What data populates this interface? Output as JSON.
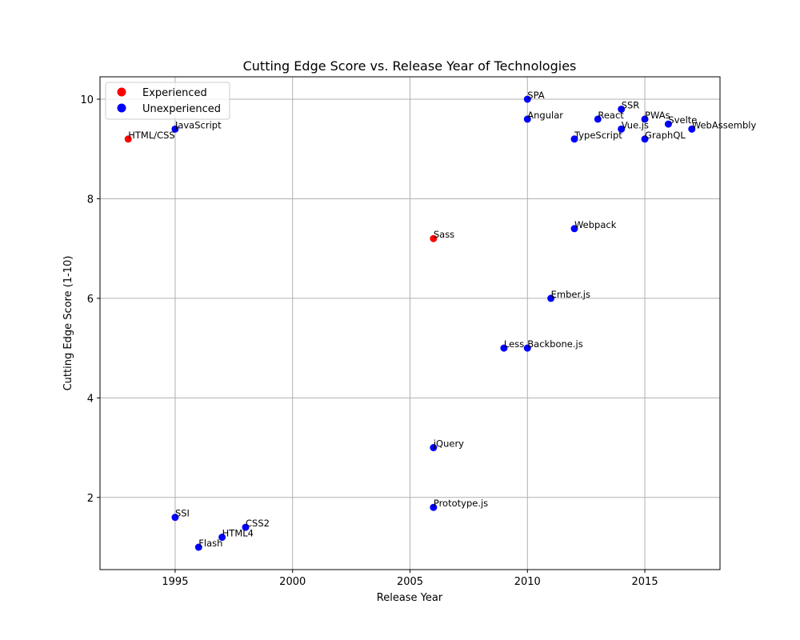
{
  "chart_data": {
    "type": "scatter",
    "title": "Cutting Edge Score vs. Release Year of Technologies",
    "xlabel": "Release Year",
    "ylabel": "Cutting Edge Score (1-10)",
    "xlim": [
      1991.8,
      2018.2
    ],
    "ylim": [
      0.55,
      10.45
    ],
    "xticks": [
      1995,
      2000,
      2005,
      2010,
      2015
    ],
    "yticks": [
      2,
      4,
      6,
      8,
      10
    ],
    "grid": true,
    "legend_position": "top-left",
    "legend": [
      {
        "label": "Experienced",
        "color": "#ff0000"
      },
      {
        "label": "Unexperienced",
        "color": "#0000ff"
      }
    ],
    "series": [
      {
        "name": "Experienced",
        "color": "#ff0000",
        "points": [
          {
            "label": "HTML/CSS",
            "x": 1993,
            "y": 9.2
          },
          {
            "label": "Sass",
            "x": 2006,
            "y": 7.2
          }
        ]
      },
      {
        "name": "Unexperienced",
        "color": "#0000ff",
        "points": [
          {
            "label": "JavaScript",
            "x": 1995,
            "y": 9.4
          },
          {
            "label": "SSI",
            "x": 1995,
            "y": 1.6
          },
          {
            "label": "Flash",
            "x": 1996,
            "y": 1.0
          },
          {
            "label": "HTML4",
            "x": 1997,
            "y": 1.2
          },
          {
            "label": "CSS2",
            "x": 1998,
            "y": 1.4
          },
          {
            "label": "jQuery",
            "x": 2006,
            "y": 3.0
          },
          {
            "label": "Prototype.js",
            "x": 2006,
            "y": 1.8
          },
          {
            "label": "Less",
            "x": 2009,
            "y": 5.0
          },
          {
            "label": "Backbone.js",
            "x": 2010,
            "y": 5.0
          },
          {
            "label": "SPA",
            "x": 2010,
            "y": 10.0
          },
          {
            "label": "Angular",
            "x": 2010,
            "y": 9.6
          },
          {
            "label": "Ember.js",
            "x": 2011,
            "y": 6.0
          },
          {
            "label": "Webpack",
            "x": 2012,
            "y": 7.4
          },
          {
            "label": "TypeScript",
            "x": 2012,
            "y": 9.2
          },
          {
            "label": "React",
            "x": 2013,
            "y": 9.6
          },
          {
            "label": "SSR",
            "x": 2014,
            "y": 9.8
          },
          {
            "label": "Vue.js",
            "x": 2014,
            "y": 9.4
          },
          {
            "label": "PWAs",
            "x": 2015,
            "y": 9.6
          },
          {
            "label": "GraphQL",
            "x": 2015,
            "y": 9.2
          },
          {
            "label": "Svelte",
            "x": 2016,
            "y": 9.5
          },
          {
            "label": "WebAssembly",
            "x": 2017,
            "y": 9.4
          }
        ]
      }
    ]
  }
}
